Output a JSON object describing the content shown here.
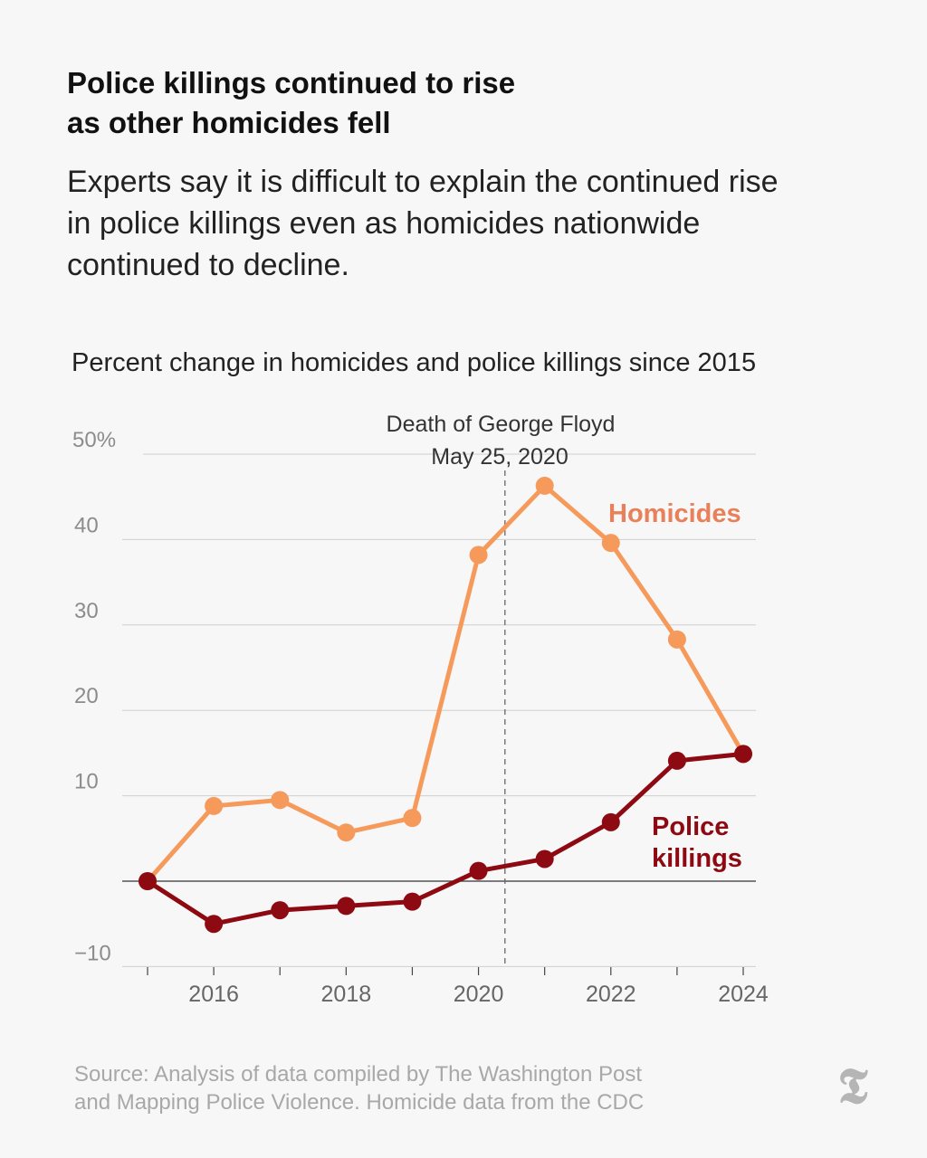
{
  "header": {
    "title_line1": "Police killings continued to rise",
    "title_line2": "as other homicides fell",
    "subtitle_line1": "Experts say it is difficult to explain the continued rise",
    "subtitle_line2": "in police killings even as homicides nationwide",
    "subtitle_line3": "continued to decline."
  },
  "chart_data": {
    "type": "line",
    "title": "Percent change in homicides and police killings since 2015",
    "x": [
      2015,
      2016,
      2017,
      2018,
      2019,
      2020,
      2021,
      2022,
      2023,
      2024
    ],
    "series": [
      {
        "name": "Homicides",
        "values": [
          0,
          8.8,
          9.5,
          5.7,
          7.4,
          38.2,
          46.3,
          39.6,
          28.3,
          14.9
        ],
        "color": "#f59a5b",
        "label_color": "#e8805a"
      },
      {
        "name": "Police killings",
        "label_lines": [
          "Police",
          "killings"
        ],
        "values": [
          0,
          -5,
          -3.4,
          -2.9,
          -2.4,
          1.2,
          2.6,
          6.9,
          14.1,
          14.9
        ],
        "color": "#8e0a12",
        "label_color": "#8e0a12"
      }
    ],
    "yticks": [
      50,
      40,
      30,
      20,
      10,
      0,
      -10
    ],
    "ytick_labels": [
      "50%",
      "40",
      "30",
      "20",
      "10",
      "",
      "−10"
    ],
    "xticks": [
      2016,
      2018,
      2020,
      2022,
      2024
    ],
    "ylim": [
      -10,
      50
    ],
    "xlim": [
      2015,
      2024
    ],
    "grid": true,
    "annotation": {
      "line1": "Death of George Floyd",
      "line2": "May 25, 2020",
      "x": 2020.4
    }
  },
  "footer": {
    "source_line1": "Source: Analysis of data compiled by The Washington Post",
    "source_line2": "and Mapping Police Violence. Homicide data from the CDC",
    "logo_glyph": "𝕿",
    "logo_icon": "new-york-times-logo"
  }
}
